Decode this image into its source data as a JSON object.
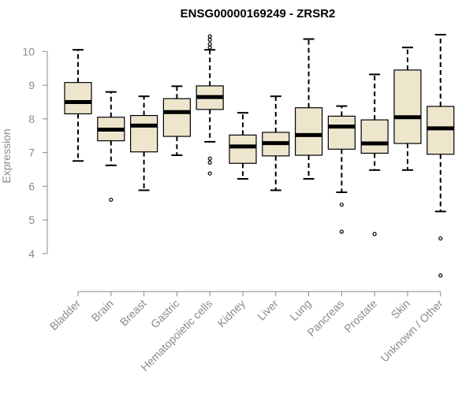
{
  "chart_data": {
    "type": "box",
    "title": "ENSG00000169249 - ZRSR2",
    "xlabel": "",
    "ylabel": "Expression",
    "ylim": [
      3.2,
      10.5
    ],
    "yticks": [
      4,
      5,
      6,
      7,
      8,
      9,
      10
    ],
    "grid": false,
    "legend": "none",
    "box_fill": "#ede6cd",
    "categories": [
      "Bladder",
      "Brain",
      "Breast",
      "Gastric",
      "Hematopoietic cells",
      "Kidney",
      "Liver",
      "Lung",
      "Pancreas",
      "Prostate",
      "Skin",
      "Unknown / Other"
    ],
    "boxes": [
      {
        "category": "Bladder",
        "min": 6.75,
        "q1": 8.15,
        "median": 8.5,
        "q3": 9.08,
        "max": 10.05,
        "outliers": []
      },
      {
        "category": "Brain",
        "min": 6.62,
        "q1": 7.35,
        "median": 7.68,
        "q3": 8.05,
        "max": 8.8,
        "outliers": [
          5.6
        ]
      },
      {
        "category": "Breast",
        "min": 5.88,
        "q1": 7.02,
        "median": 7.8,
        "q3": 8.1,
        "max": 8.67,
        "outliers": []
      },
      {
        "category": "Gastric",
        "min": 6.92,
        "q1": 7.48,
        "median": 8.2,
        "q3": 8.6,
        "max": 8.97,
        "outliers": []
      },
      {
        "category": "Hematopoietic cells",
        "min": 7.32,
        "q1": 8.28,
        "median": 8.65,
        "q3": 8.98,
        "max": 10.05,
        "outliers": [
          6.38,
          6.7,
          6.82,
          10.12,
          10.22,
          10.35,
          10.45
        ]
      },
      {
        "category": "Kidney",
        "min": 6.22,
        "q1": 6.68,
        "median": 7.18,
        "q3": 7.52,
        "max": 8.18,
        "outliers": []
      },
      {
        "category": "Liver",
        "min": 5.88,
        "q1": 6.9,
        "median": 7.28,
        "q3": 7.6,
        "max": 8.67,
        "outliers": []
      },
      {
        "category": "Lung",
        "min": 6.22,
        "q1": 6.92,
        "median": 7.52,
        "q3": 8.33,
        "max": 10.37,
        "outliers": []
      },
      {
        "category": "Pancreas",
        "min": 5.82,
        "q1": 7.1,
        "median": 7.77,
        "q3": 8.08,
        "max": 8.38,
        "outliers": [
          4.65,
          5.45
        ]
      },
      {
        "category": "Prostate",
        "min": 6.48,
        "q1": 6.98,
        "median": 7.27,
        "q3": 7.97,
        "max": 9.32,
        "outliers": [
          4.58
        ]
      },
      {
        "category": "Skin",
        "min": 6.48,
        "q1": 7.27,
        "median": 8.05,
        "q3": 9.45,
        "max": 10.12,
        "outliers": []
      },
      {
        "category": "Unknown / Other",
        "min": 5.25,
        "q1": 6.95,
        "median": 7.72,
        "q3": 8.37,
        "max": 10.5,
        "outliers": [
          3.35,
          4.45
        ]
      }
    ]
  }
}
